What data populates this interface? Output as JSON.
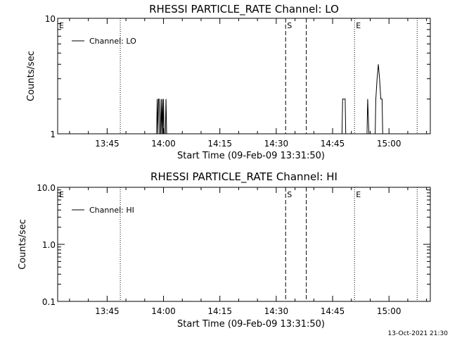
{
  "chart_data": [
    {
      "type": "line",
      "title": "RHESSI PARTICLE_RATE Channel: LO",
      "xlabel": "Start Time (09-Feb-09 13:31:50)",
      "ylabel": "Counts/sec",
      "yscale": "log",
      "xlim": [
        "13:31:50",
        "15:11:00"
      ],
      "ylim": [
        1,
        10
      ],
      "x_ticks": [
        "13:45",
        "14:00",
        "14:15",
        "14:30",
        "14:45",
        "15:00"
      ],
      "y_ticks": [
        "1",
        "10"
      ],
      "legend": {
        "placement": "top-left",
        "entries": [
          "Channel: LO"
        ]
      },
      "series": [
        {
          "name": "Channel: LO",
          "x": [
            "13:31:50",
            "13:58:10",
            "13:58:20",
            "13:58:30",
            "13:58:40",
            "13:58:50",
            "13:59:00",
            "13:59:10",
            "13:59:20",
            "13:59:30",
            "13:59:40",
            "13:59:50",
            "14:00:00",
            "14:00:10",
            "14:00:20",
            "14:00:30",
            "14:00:40",
            "14:00:50",
            "14:47:30",
            "14:47:40",
            "14:48:00",
            "14:48:20",
            "14:48:30",
            "14:54:10",
            "14:54:20",
            "14:54:40",
            "14:54:50",
            "14:56:20",
            "14:56:30",
            "14:56:50",
            "14:57:10",
            "14:57:30",
            "14:57:50",
            "14:58:10",
            "14:58:20",
            "15:11:00"
          ],
          "values": [
            1,
            1,
            2,
            1,
            2,
            2,
            1,
            1,
            2,
            1,
            2,
            1,
            2,
            1,
            1,
            1,
            2,
            1,
            1,
            2,
            2,
            2,
            1,
            1,
            2,
            1,
            1,
            1,
            2,
            3,
            4,
            3,
            2,
            2,
            1,
            1
          ]
        }
      ],
      "annotations": [
        {
          "label": "E",
          "x": "13:31:50",
          "style": "text"
        },
        {
          "label": "",
          "x": "13:48:30",
          "style": "dotted"
        },
        {
          "label": "S",
          "x": "14:32:30",
          "style": "dashed"
        },
        {
          "label": "",
          "x": "14:38:00",
          "style": "dashed"
        },
        {
          "label": "E",
          "x": "14:50:50",
          "style": "dotted"
        },
        {
          "label": "",
          "x": "15:07:30",
          "style": "dotted"
        }
      ]
    },
    {
      "type": "line",
      "title": "RHESSI PARTICLE_RATE Channel: HI",
      "xlabel": "Start Time (09-Feb-09 13:31:50)",
      "ylabel": "Counts/sec",
      "yscale": "log",
      "xlim": [
        "13:31:50",
        "15:11:00"
      ],
      "ylim": [
        0.1,
        10
      ],
      "x_ticks": [
        "13:45",
        "14:00",
        "14:15",
        "14:30",
        "14:45",
        "15:00"
      ],
      "y_ticks": [
        "0.1",
        "1.0",
        "10.0"
      ],
      "legend": {
        "placement": "top-left",
        "entries": [
          "Channel: HI"
        ]
      },
      "series": [
        {
          "name": "Channel: HI",
          "x": [],
          "values": []
        }
      ],
      "annotations": [
        {
          "label": "E",
          "x": "13:31:50",
          "style": "text"
        },
        {
          "label": "",
          "x": "13:48:30",
          "style": "dotted"
        },
        {
          "label": "S",
          "x": "14:32:30",
          "style": "dashed"
        },
        {
          "label": "",
          "x": "14:38:00",
          "style": "dashed"
        },
        {
          "label": "E",
          "x": "14:50:50",
          "style": "dotted"
        },
        {
          "label": "",
          "x": "15:07:30",
          "style": "dotted"
        }
      ]
    }
  ],
  "footer": {
    "timestamp": "13-Oct-2021 21:30"
  }
}
